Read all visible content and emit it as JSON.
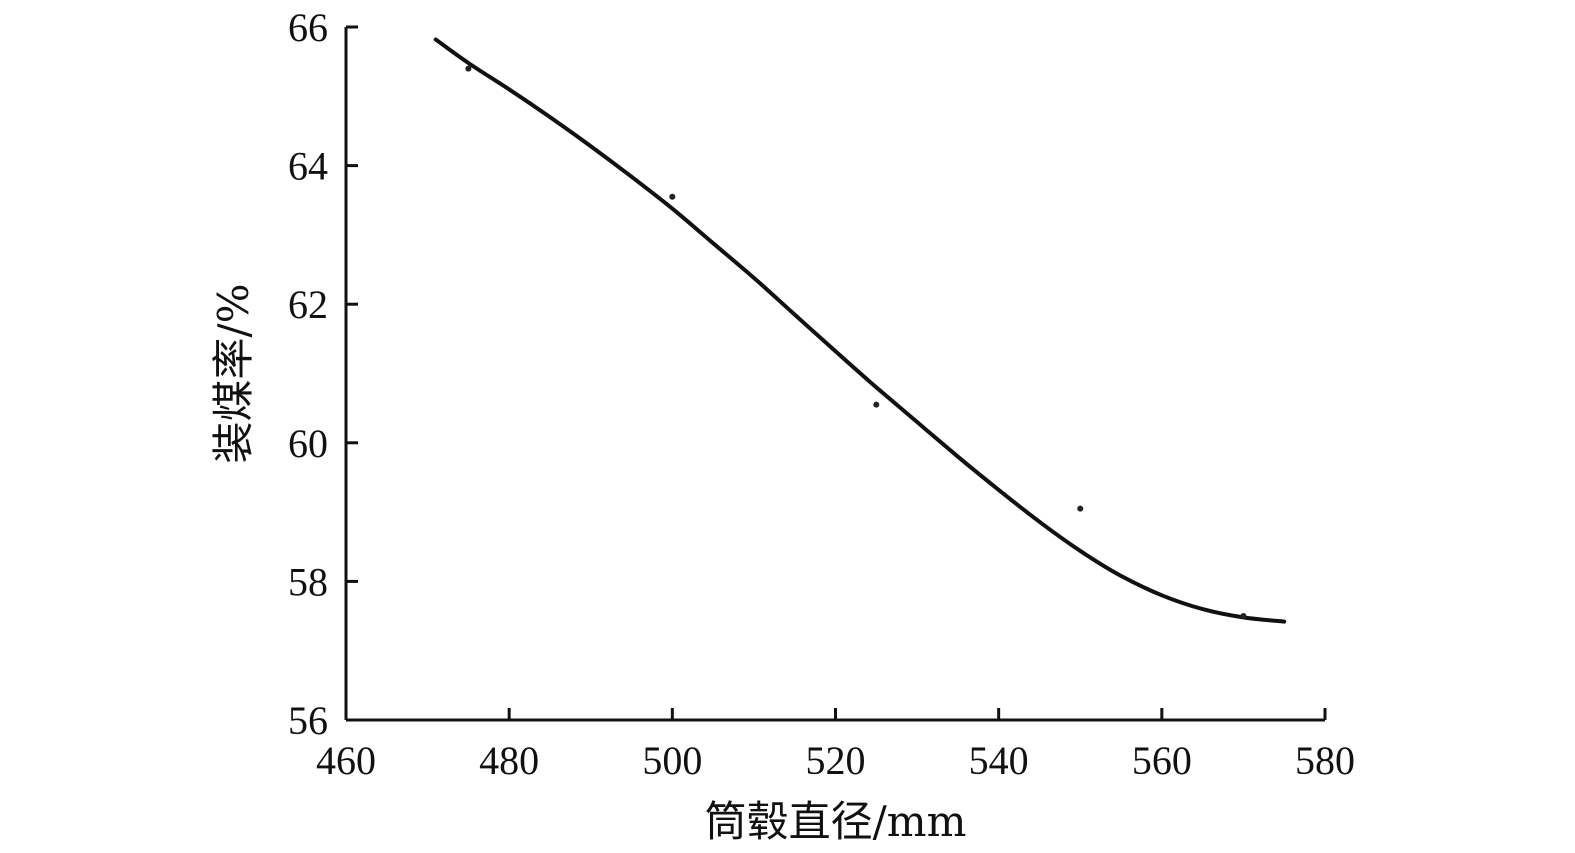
{
  "chart_data": {
    "type": "scatter",
    "title": "",
    "xlabel": "筒毂直径/mm",
    "ylabel": "装煤率/%",
    "xlim": [
      460,
      580
    ],
    "ylim": [
      56,
      66
    ],
    "xticks": [
      460,
      480,
      500,
      520,
      540,
      560,
      580
    ],
    "yticks": [
      56,
      58,
      60,
      62,
      64,
      66
    ],
    "grid": false,
    "legend": "none",
    "series": [
      {
        "kind": "points",
        "x": [
          475,
          500,
          525,
          550,
          570
        ],
        "y": [
          65.4,
          63.55,
          60.55,
          59.05,
          57.5
        ]
      },
      {
        "kind": "fitted-curve",
        "x": [
          471,
          475,
          480,
          485,
          490,
          495,
          500,
          505,
          510,
          515,
          520,
          525,
          530,
          535,
          540,
          545,
          550,
          555,
          560,
          565,
          570,
          575
        ],
        "y": [
          65.82,
          65.48,
          65.1,
          64.7,
          64.28,
          63.84,
          63.38,
          62.88,
          62.38,
          61.85,
          61.32,
          60.8,
          60.3,
          59.8,
          59.32,
          58.86,
          58.44,
          58.08,
          57.8,
          57.6,
          57.48,
          57.42
        ]
      }
    ],
    "colors": {
      "line": "#111111",
      "points": "#222222"
    }
  }
}
